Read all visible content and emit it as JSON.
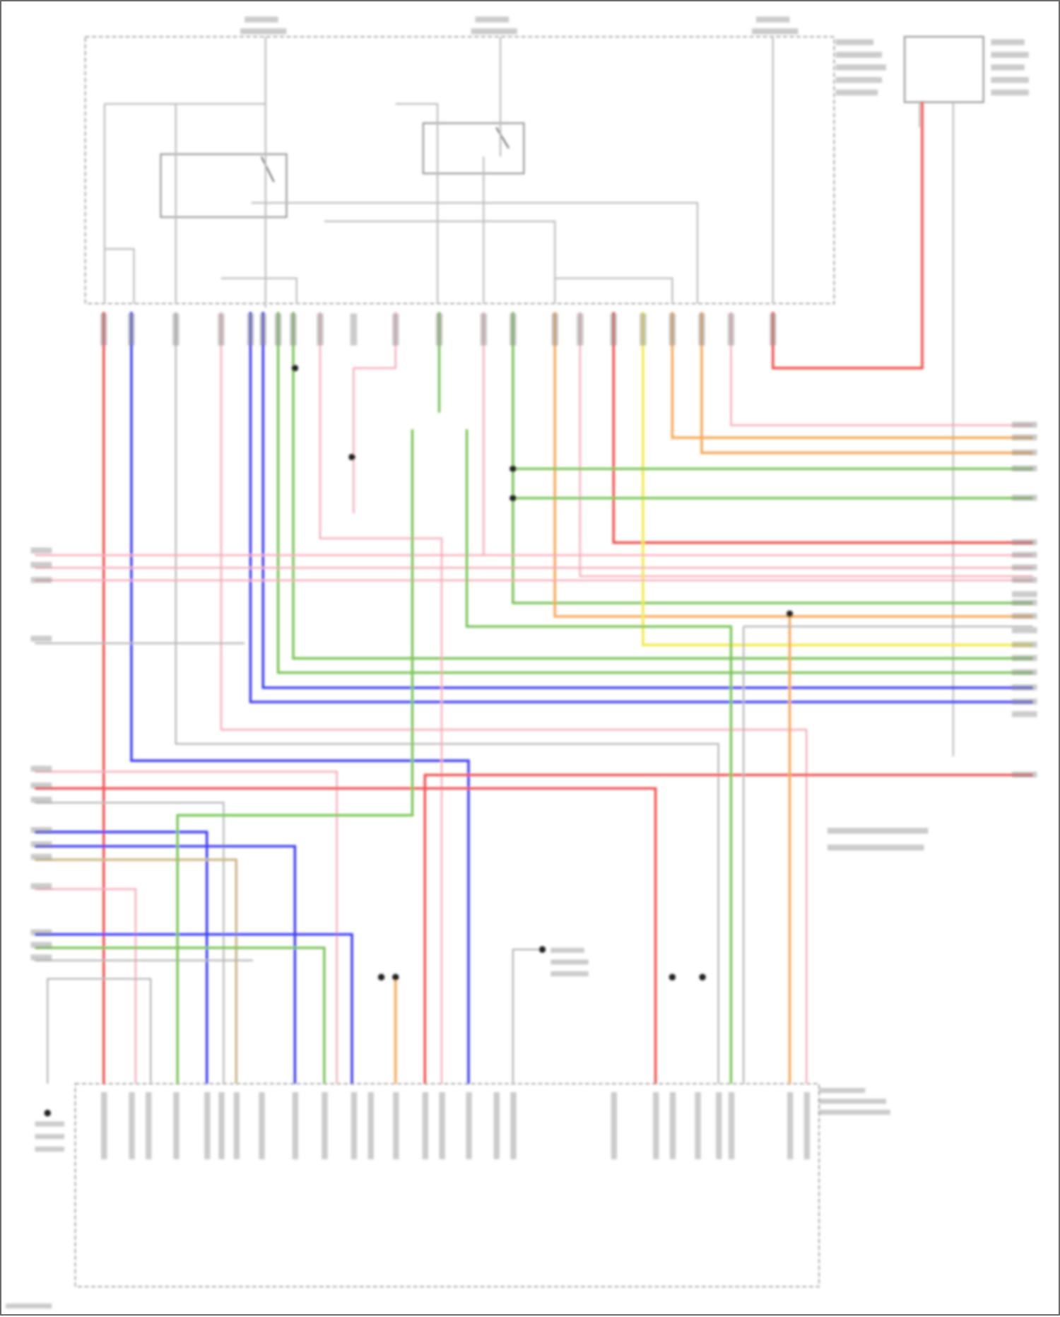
{
  "diagram": {
    "domain": "wiring-diagram",
    "wire_colors": {
      "red": "#f0534f",
      "pink": "#f5a7b4",
      "blue": "#3f3ff0",
      "green": "#7cc65a",
      "orange": "#f7a95a",
      "yellow": "#f2ea4a",
      "gray": "#b5b5b5",
      "tan": "#cbb98a"
    },
    "component_outline_color": "#9a9a9a",
    "label_color": "#8c8c8c"
  }
}
